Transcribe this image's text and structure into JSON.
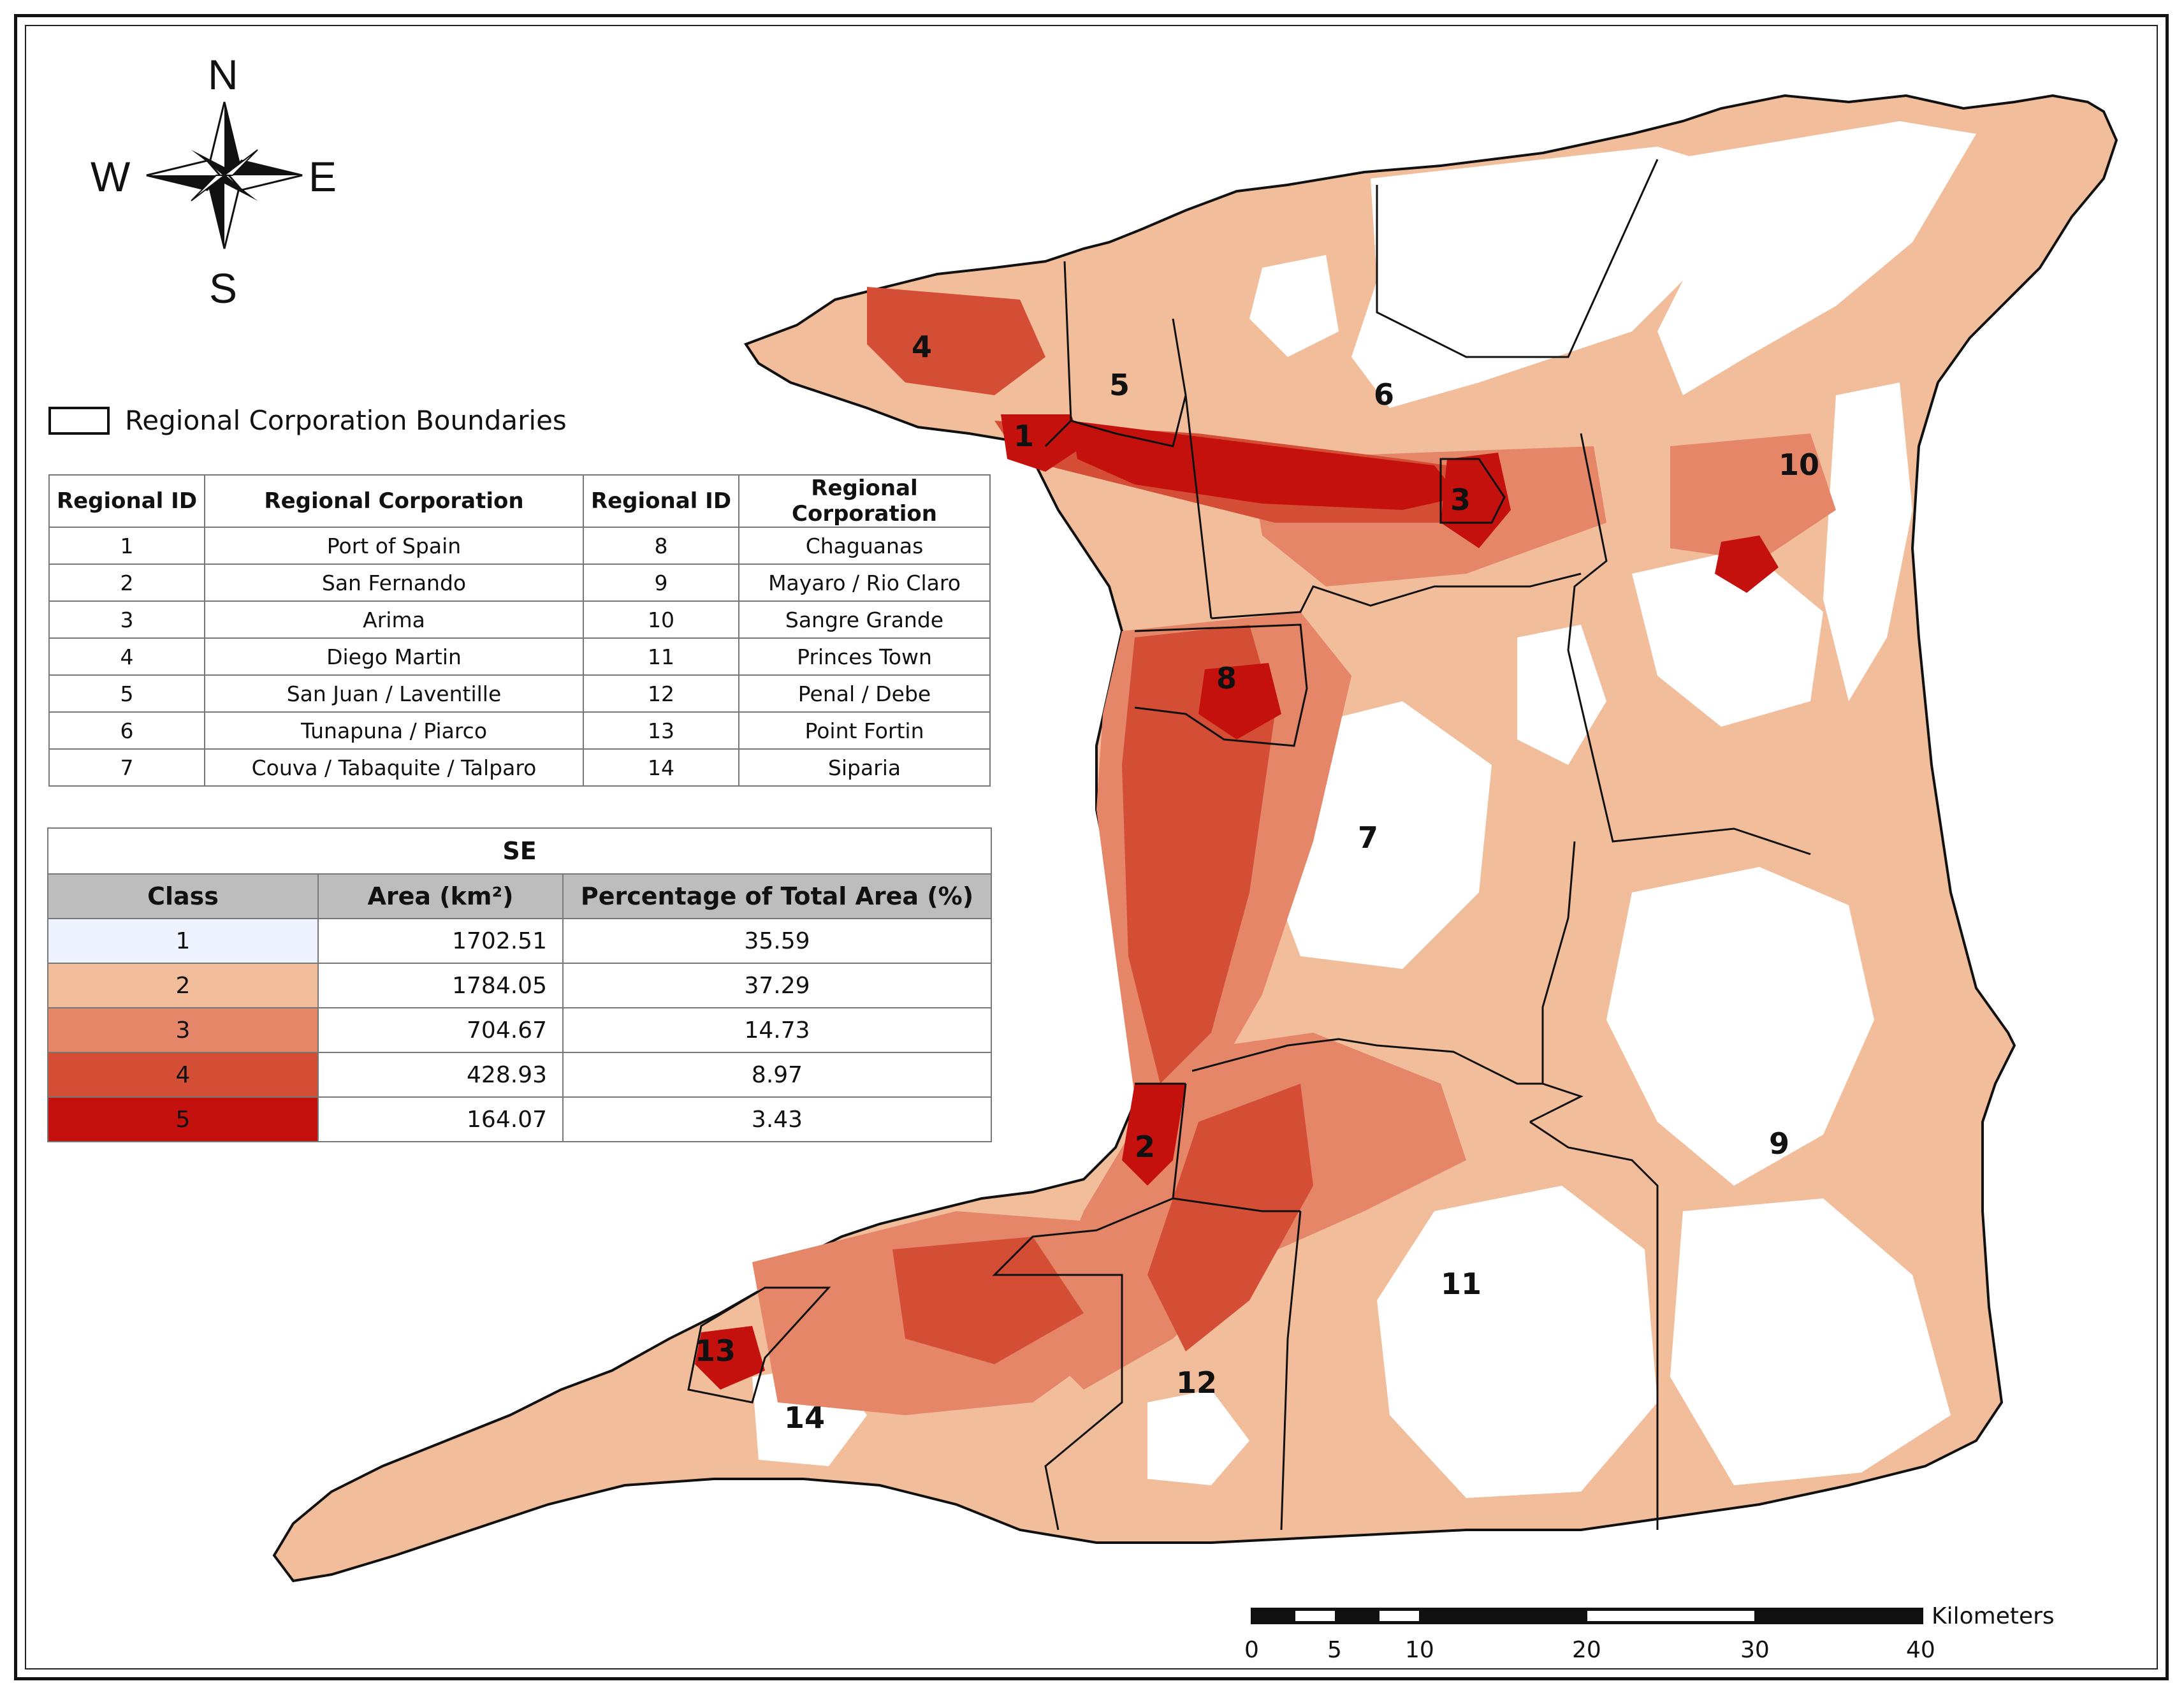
{
  "compass": {
    "n": "N",
    "s": "S",
    "e": "E",
    "w": "W"
  },
  "legend": {
    "boundary_label": "Regional Corporation Boundaries"
  },
  "region_table": {
    "headers": [
      "Regional ID",
      "Regional Corporation",
      "Regional ID",
      "Regional Corporation"
    ],
    "rows": [
      [
        "1",
        "Port of Spain",
        "8",
        "Chaguanas"
      ],
      [
        "2",
        "San Fernando",
        "9",
        "Mayaro / Rio Claro"
      ],
      [
        "3",
        "Arima",
        "10",
        "Sangre Grande"
      ],
      [
        "4",
        "Diego Martin",
        "11",
        "Princes Town"
      ],
      [
        "5",
        "San Juan / Laventille",
        "12",
        "Penal / Debe"
      ],
      [
        "6",
        "Tunapuna / Piarco",
        "13",
        "Point Fortin"
      ],
      [
        "7",
        "Couva / Tabaquite / Talparo",
        "14",
        "Siparia"
      ]
    ]
  },
  "se_table": {
    "title": "SE",
    "headers": [
      "Class",
      "Area (km²)",
      "Percentage of Total Area (%)"
    ],
    "rows": [
      {
        "class": "1",
        "area": "1702.51",
        "pct": "35.59",
        "color": "#eef3ff"
      },
      {
        "class": "2",
        "area": "1784.05",
        "pct": "37.29",
        "color": "#f2bd9b"
      },
      {
        "class": "3",
        "area": "704.67",
        "pct": "14.73",
        "color": "#e48667"
      },
      {
        "class": "4",
        "area": "428.93",
        "pct": "8.97",
        "color": "#d44d35"
      },
      {
        "class": "5",
        "area": "164.07",
        "pct": "3.43",
        "color": "#c4110e"
      }
    ]
  },
  "region_labels": [
    "1",
    "2",
    "3",
    "4",
    "5",
    "6",
    "7",
    "8",
    "9",
    "10",
    "11",
    "12",
    "13",
    "14"
  ],
  "scalebar": {
    "unit": "Kilometers",
    "ticks": [
      "0",
      "5",
      "10",
      "20",
      "30",
      "40"
    ]
  }
}
